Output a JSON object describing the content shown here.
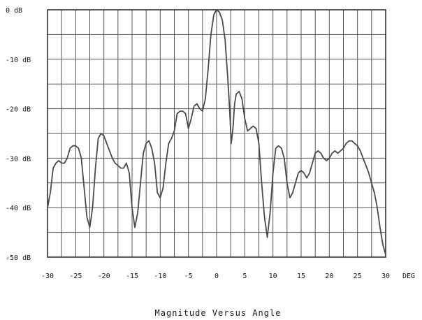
{
  "chart_data": {
    "type": "line",
    "title": "Magnitude Versus Angle",
    "xlabel": "",
    "ylabel": "",
    "x_unit_label": "DEG",
    "xlim": [
      -30,
      30
    ],
    "ylim": [
      -50,
      0
    ],
    "grid": true,
    "legend": "none",
    "x_ticks": [
      -30,
      -25,
      -20,
      -15,
      -10,
      -5,
      0,
      5,
      10,
      15,
      20,
      25,
      30
    ],
    "x_tick_labels": [
      "-30",
      "-25",
      "-20",
      "-15",
      "-10",
      "-5",
      "0",
      "5",
      "10",
      "15",
      "20",
      "25",
      "30"
    ],
    "y_ticks": [
      0,
      -10,
      -20,
      -30,
      -40,
      -50
    ],
    "y_tick_labels": [
      "0 dB",
      "-10 dB",
      "-20 dB",
      "-30 dB",
      "-40 dB",
      "-50 dB"
    ],
    "x_minor_step": 2.5,
    "y_minor_step": 5,
    "colors": {
      "line": "#4a4a4a",
      "grid": "#555555",
      "frame": "#222222"
    },
    "series": [
      {
        "values": [
          [
            -30,
            -40
          ],
          [
            -29.5,
            -37
          ],
          [
            -29,
            -32
          ],
          [
            -28.5,
            -31
          ],
          [
            -28,
            -30.5
          ],
          [
            -27.5,
            -31
          ],
          [
            -27,
            -31
          ],
          [
            -26.5,
            -30
          ],
          [
            -26,
            -28
          ],
          [
            -25.5,
            -27.5
          ],
          [
            -25,
            -27.5
          ],
          [
            -24.5,
            -28
          ],
          [
            -24,
            -30
          ],
          [
            -23.5,
            -36
          ],
          [
            -23,
            -42
          ],
          [
            -22.5,
            -44
          ],
          [
            -22,
            -40
          ],
          [
            -21.5,
            -32
          ],
          [
            -21,
            -26
          ],
          [
            -20.5,
            -25
          ],
          [
            -20,
            -25.5
          ],
          [
            -19.5,
            -27
          ],
          [
            -19,
            -28.5
          ],
          [
            -18.5,
            -30
          ],
          [
            -18,
            -31
          ],
          [
            -17.5,
            -31.5
          ],
          [
            -17,
            -32
          ],
          [
            -16.5,
            -32
          ],
          [
            -16,
            -31
          ],
          [
            -15.5,
            -33
          ],
          [
            -15,
            -40
          ],
          [
            -14.5,
            -44
          ],
          [
            -14,
            -41
          ],
          [
            -13.5,
            -35
          ],
          [
            -13,
            -29
          ],
          [
            -12.5,
            -27
          ],
          [
            -12,
            -26.5
          ],
          [
            -11.5,
            -28
          ],
          [
            -11,
            -31
          ],
          [
            -10.5,
            -37
          ],
          [
            -10,
            -38
          ],
          [
            -9.5,
            -36
          ],
          [
            -9,
            -31
          ],
          [
            -8.5,
            -27
          ],
          [
            -8,
            -26
          ],
          [
            -7.5,
            -24.5
          ],
          [
            -7,
            -21
          ],
          [
            -6.5,
            -20.5
          ],
          [
            -6,
            -20.5
          ],
          [
            -5.5,
            -21
          ],
          [
            -5,
            -24
          ],
          [
            -4.5,
            -22
          ],
          [
            -4,
            -19.5
          ],
          [
            -3.5,
            -19
          ],
          [
            -3,
            -20
          ],
          [
            -2.5,
            -20.5
          ],
          [
            -2,
            -18
          ],
          [
            -1.5,
            -12
          ],
          [
            -1,
            -5
          ],
          [
            -0.5,
            -1
          ],
          [
            0,
            0
          ],
          [
            0.5,
            -0.5
          ],
          [
            1,
            -2
          ],
          [
            1.5,
            -6
          ],
          [
            2,
            -14
          ],
          [
            2.3,
            -20
          ],
          [
            2.6,
            -27
          ],
          [
            2.9,
            -24
          ],
          [
            3.2,
            -19
          ],
          [
            3.5,
            -17
          ],
          [
            4,
            -16.5
          ],
          [
            4.5,
            -18
          ],
          [
            5,
            -22
          ],
          [
            5.5,
            -24.5
          ],
          [
            6,
            -24
          ],
          [
            6.5,
            -23.5
          ],
          [
            7,
            -24
          ],
          [
            7.5,
            -27
          ],
          [
            8,
            -35
          ],
          [
            8.5,
            -42
          ],
          [
            9,
            -46
          ],
          [
            9.5,
            -41
          ],
          [
            10,
            -33
          ],
          [
            10.5,
            -28
          ],
          [
            11,
            -27.5
          ],
          [
            11.5,
            -28
          ],
          [
            12,
            -30
          ],
          [
            12.5,
            -35
          ],
          [
            13,
            -38
          ],
          [
            13.5,
            -37
          ],
          [
            14,
            -35
          ],
          [
            14.5,
            -33
          ],
          [
            15,
            -32.5
          ],
          [
            15.5,
            -33
          ],
          [
            16,
            -34
          ],
          [
            16.5,
            -33
          ],
          [
            17,
            -31
          ],
          [
            17.5,
            -29
          ],
          [
            18,
            -28.5
          ],
          [
            18.5,
            -29
          ],
          [
            19,
            -30
          ],
          [
            19.5,
            -30.5
          ],
          [
            20,
            -30
          ],
          [
            20.5,
            -29
          ],
          [
            21,
            -28.5
          ],
          [
            21.5,
            -29
          ],
          [
            22,
            -28.5
          ],
          [
            22.5,
            -28
          ],
          [
            23,
            -27
          ],
          [
            23.5,
            -26.5
          ],
          [
            24,
            -26.5
          ],
          [
            24.5,
            -27
          ],
          [
            25,
            -27.5
          ],
          [
            25.5,
            -28.5
          ],
          [
            26,
            -30
          ],
          [
            26.5,
            -31.5
          ],
          [
            27,
            -33
          ],
          [
            27.5,
            -35
          ],
          [
            28,
            -37
          ],
          [
            28.5,
            -40
          ],
          [
            29,
            -44
          ],
          [
            29.5,
            -47.5
          ],
          [
            30,
            -49.5
          ]
        ]
      }
    ]
  }
}
